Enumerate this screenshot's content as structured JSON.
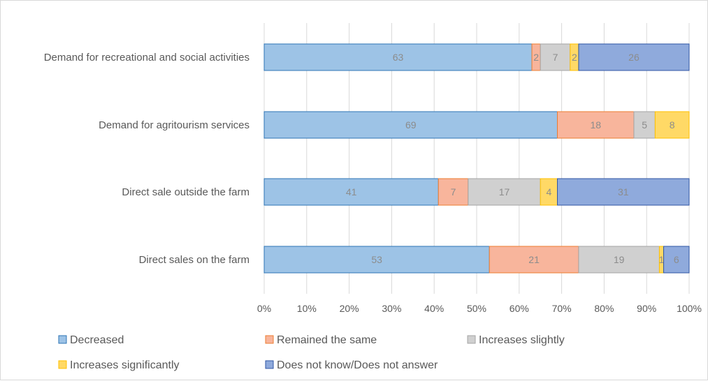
{
  "chart_data": {
    "type": "bar",
    "orientation": "horizontal",
    "stacking": "percent",
    "categories": [
      "Demand for recreational and social activities",
      "Demand for agritourism services",
      "Direct sale outside the farm",
      "Direct sales on the farm"
    ],
    "series": [
      {
        "name": "Decreased",
        "values": [
          63,
          69,
          41,
          53
        ],
        "color": "#9dc3e6",
        "edge": "#2e75b6"
      },
      {
        "name": "Remained the same",
        "values": [
          2,
          18,
          7,
          21
        ],
        "color": "#f8b59c",
        "edge": "#ed7d31"
      },
      {
        "name": "Increases slightly",
        "values": [
          7,
          5,
          17,
          19
        ],
        "color": "#d0d0d0",
        "edge": "#a5a5a5"
      },
      {
        "name": "Increases significantly",
        "values": [
          2,
          8,
          4,
          1
        ],
        "color": "#ffd966",
        "edge": "#ffc000"
      },
      {
        "name": "Does not know/Does not answer",
        "values": [
          26,
          0,
          31,
          6
        ],
        "color": "#8faadc",
        "edge": "#2f55a4"
      }
    ],
    "x_ticks": [
      "0%",
      "10%",
      "20%",
      "30%",
      "40%",
      "50%",
      "60%",
      "70%",
      "80%",
      "90%",
      "100%"
    ],
    "xlim": [
      0,
      100
    ],
    "grid": true,
    "legend": "bottom",
    "title": "",
    "xlabel": "",
    "ylabel": ""
  }
}
